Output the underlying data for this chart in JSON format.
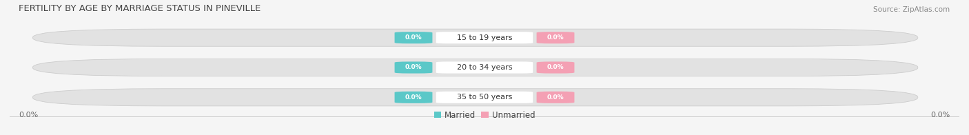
{
  "title": "FERTILITY BY AGE BY MARRIAGE STATUS IN PINEVILLE",
  "source_text": "Source: ZipAtlas.com",
  "categories": [
    "15 to 19 years",
    "20 to 34 years",
    "35 to 50 years"
  ],
  "married_values": [
    0.0,
    0.0,
    0.0
  ],
  "unmarried_values": [
    0.0,
    0.0,
    0.0
  ],
  "married_color": "#5bc8c8",
  "unmarried_color": "#f4a0b4",
  "bar_bg_color": "#e2e2e2",
  "bar_center_color": "#ffffff",
  "title_fontsize": 9.5,
  "source_fontsize": 7.5,
  "cat_fontsize": 8,
  "badge_fontsize": 6.5,
  "axis_label_fontsize": 8,
  "legend_married": "Married",
  "legend_unmarried": "Unmarried",
  "left_axis_label": "0.0%",
  "right_axis_label": "0.0%",
  "background_color": "#f5f5f5"
}
